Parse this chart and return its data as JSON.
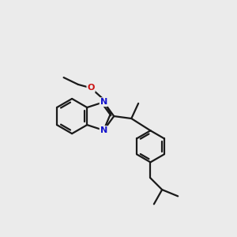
{
  "background_color": "#ebebeb",
  "bond_color": "#1a1a1a",
  "n_color": "#1414cc",
  "o_color": "#cc1414",
  "lw": 1.6,
  "figsize": [
    3.0,
    3.0
  ],
  "dpi": 100,
  "xlim": [
    0,
    10
  ],
  "ylim": [
    0,
    10
  ]
}
